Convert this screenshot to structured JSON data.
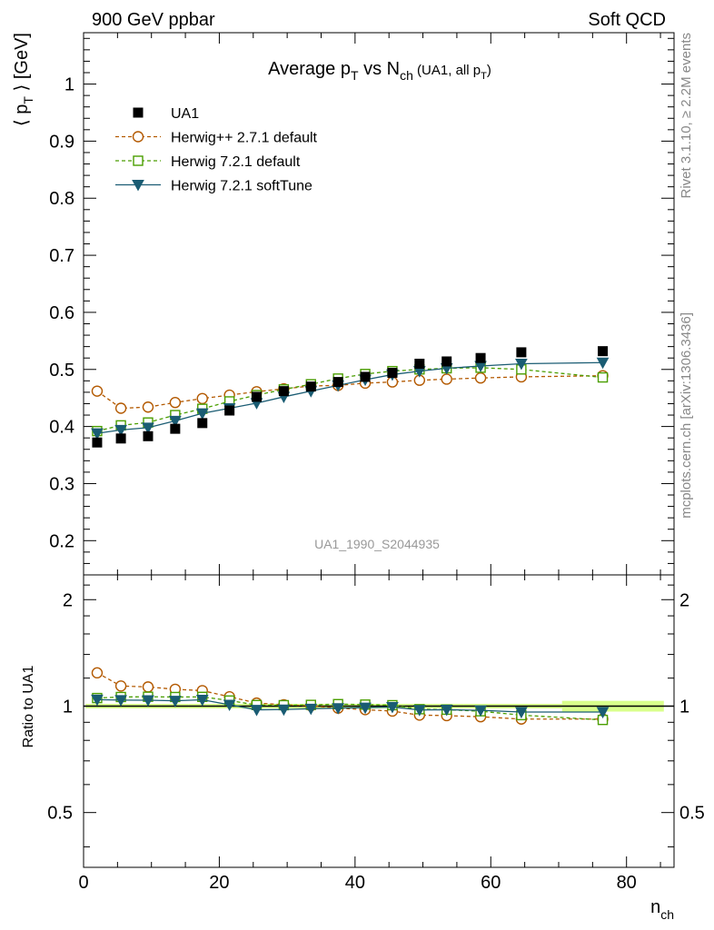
{
  "header": {
    "left": "900 GeV ppbar",
    "right": "Soft QCD",
    "side_top": "Rivet 3.1.10, ≥ 2.2M events",
    "side_bottom": "mcplots.cern.ch [arXiv:1306.3436]",
    "watermark": "UA1_1990_S2044935"
  },
  "chart_data": {
    "type": "line",
    "title": {
      "main_prefix": "Average p",
      "main_sub1": "T",
      "main_mid": " vs N",
      "main_sub2": "ch",
      "tag_prefix": " (UA1, all p",
      "tag_sub": "T",
      "tag_suffix": ")"
    },
    "xlabel": {
      "base": "n",
      "sub": "ch"
    },
    "ylabel": {
      "pre": "⟨ p",
      "sub": "T",
      "post": " ⟩ [GeV]"
    },
    "ratio_ylabel": "Ratio to UA1",
    "xlim": [
      0,
      87
    ],
    "ylim": [
      0.14,
      1.09
    ],
    "ratio_ylim": [
      0.35,
      2.35
    ],
    "ratio_log": true,
    "xticks": [
      0,
      20,
      40,
      60,
      80
    ],
    "xtick_labels": [
      "0",
      "20",
      "40",
      "60",
      "80"
    ],
    "yticks": [
      0.2,
      0.3,
      0.4,
      0.5,
      0.6,
      0.7,
      0.8,
      0.9,
      1
    ],
    "ytick_labels": [
      "0.2",
      "0.3",
      "0.4",
      "0.5",
      "0.6",
      "0.7",
      "0.8",
      "0.9",
      "1"
    ],
    "ratio_ticks": [
      0.5,
      1,
      2
    ],
    "ratio_tick_labels": [
      "0.5",
      "1",
      "2"
    ],
    "legend_position": "top-left",
    "x": [
      2,
      5.5,
      9.5,
      13.5,
      17.5,
      21.5,
      25.5,
      29.5,
      33.5,
      37.5,
      41.5,
      45.5,
      49.5,
      53.5,
      58.5,
      64.5,
      76.5
    ],
    "data": {
      "name": "UA1",
      "color": "#000000",
      "values": [
        0.372,
        0.379,
        0.383,
        0.396,
        0.406,
        0.428,
        0.452,
        0.462,
        0.47,
        0.478,
        0.487,
        0.494,
        0.51,
        0.514,
        0.52,
        0.53,
        0.532
      ]
    },
    "series": [
      {
        "name": "Herwig++ 2.7.1 default",
        "color": "#b35900",
        "marker": "circle",
        "values": [
          0.462,
          0.432,
          0.434,
          0.442,
          0.449,
          0.455,
          0.461,
          0.466,
          0.471,
          0.472,
          0.476,
          0.478,
          0.481,
          0.483,
          0.485,
          0.487,
          0.489
        ],
        "ratio": [
          1.242,
          1.14,
          1.133,
          1.116,
          1.106,
          1.063,
          1.02,
          1.009,
          1.002,
          0.987,
          0.977,
          0.968,
          0.943,
          0.94,
          0.933,
          0.919,
          0.919
        ]
      },
      {
        "name": "Herwig 7.2.1 default",
        "color": "#4a9e00",
        "marker": "square",
        "values": [
          0.392,
          0.402,
          0.407,
          0.42,
          0.431,
          0.444,
          0.455,
          0.465,
          0.474,
          0.484,
          0.492,
          0.497,
          0.5,
          0.502,
          0.503,
          0.5,
          0.486
        ],
        "ratio": [
          1.054,
          1.061,
          1.063,
          1.061,
          1.062,
          1.037,
          1.007,
          1.006,
          1.008,
          1.013,
          1.01,
          1.006,
          0.98,
          0.977,
          0.967,
          0.943,
          0.914
        ]
      },
      {
        "name": "Herwig 7.2.1 softTune",
        "color": "#1a5c73",
        "marker": "triangle-down",
        "values": [
          0.388,
          0.394,
          0.398,
          0.41,
          0.423,
          0.432,
          0.441,
          0.452,
          0.462,
          0.472,
          0.482,
          0.491,
          0.497,
          0.502,
          0.506,
          0.51,
          0.512
        ],
        "ratio": [
          1.043,
          1.04,
          1.039,
          1.035,
          1.042,
          1.009,
          0.976,
          0.978,
          0.983,
          0.987,
          0.99,
          0.994,
          0.975,
          0.977,
          0.973,
          0.962,
          0.962
        ]
      }
    ],
    "band_color": "#ccff66"
  }
}
